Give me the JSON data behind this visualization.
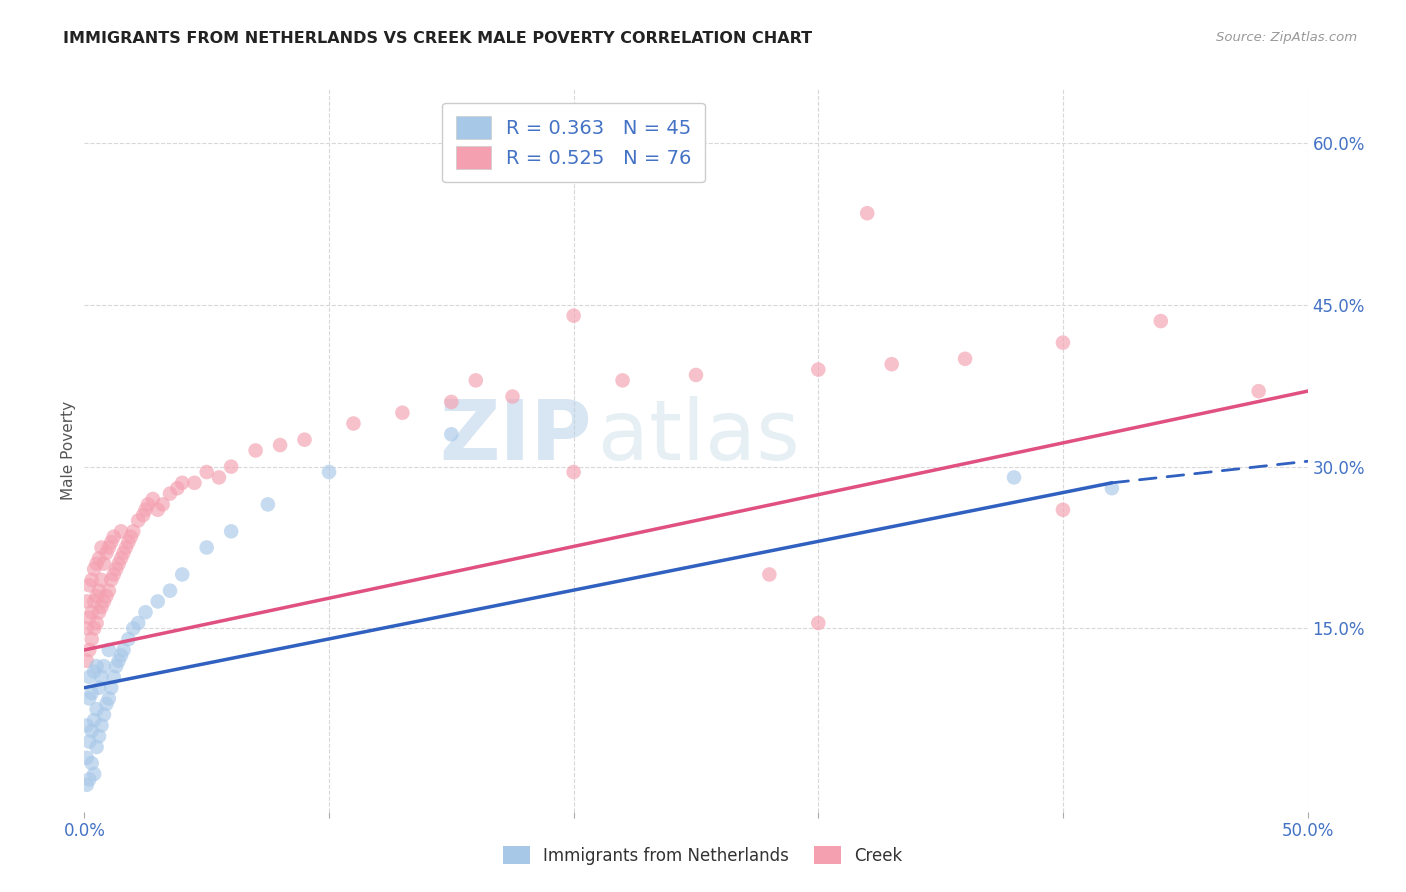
{
  "title": "IMMIGRANTS FROM NETHERLANDS VS CREEK MALE POVERTY CORRELATION CHART",
  "source": "Source: ZipAtlas.com",
  "ylabel": "Male Poverty",
  "xlim": [
    0.0,
    0.5
  ],
  "ylim": [
    -0.02,
    0.65
  ],
  "yticks_right": [
    0.15,
    0.3,
    0.45,
    0.6
  ],
  "ytick_labels_right": [
    "15.0%",
    "30.0%",
    "45.0%",
    "60.0%"
  ],
  "legend_r1": "R = 0.363",
  "legend_n1": "N = 45",
  "legend_r2": "R = 0.525",
  "legend_n2": "N = 76",
  "color_blue": "#a8c8e8",
  "color_pink": "#f4a0b0",
  "color_blue_line": "#3060c0",
  "color_pink_line": "#e05080",
  "background_color": "#ffffff",
  "grid_color": "#d8d8d8",
  "watermark_zip": "ZIP",
  "watermark_atlas": "atlas",
  "blue_x": [
    0.001,
    0.001,
    0.001,
    0.002,
    0.002,
    0.002,
    0.002,
    0.003,
    0.003,
    0.003,
    0.004,
    0.004,
    0.004,
    0.005,
    0.005,
    0.005,
    0.006,
    0.006,
    0.007,
    0.007,
    0.008,
    0.008,
    0.009,
    0.01,
    0.01,
    0.011,
    0.012,
    0.013,
    0.014,
    0.015,
    0.016,
    0.018,
    0.02,
    0.022,
    0.025,
    0.03,
    0.035,
    0.04,
    0.05,
    0.06,
    0.075,
    0.1,
    0.15,
    0.38,
    0.42
  ],
  "blue_y": [
    0.005,
    0.03,
    0.06,
    0.01,
    0.045,
    0.085,
    0.105,
    0.025,
    0.055,
    0.09,
    0.015,
    0.065,
    0.11,
    0.04,
    0.075,
    0.115,
    0.05,
    0.095,
    0.06,
    0.105,
    0.07,
    0.115,
    0.08,
    0.085,
    0.13,
    0.095,
    0.105,
    0.115,
    0.12,
    0.125,
    0.13,
    0.14,
    0.15,
    0.155,
    0.165,
    0.175,
    0.185,
    0.2,
    0.225,
    0.24,
    0.265,
    0.295,
    0.33,
    0.29,
    0.28
  ],
  "pink_x": [
    0.001,
    0.001,
    0.001,
    0.002,
    0.002,
    0.002,
    0.003,
    0.003,
    0.003,
    0.004,
    0.004,
    0.004,
    0.005,
    0.005,
    0.005,
    0.006,
    0.006,
    0.006,
    0.007,
    0.007,
    0.007,
    0.008,
    0.008,
    0.009,
    0.009,
    0.01,
    0.01,
    0.011,
    0.011,
    0.012,
    0.012,
    0.013,
    0.014,
    0.015,
    0.015,
    0.016,
    0.017,
    0.018,
    0.019,
    0.02,
    0.022,
    0.024,
    0.025,
    0.026,
    0.028,
    0.03,
    0.032,
    0.035,
    0.038,
    0.04,
    0.045,
    0.05,
    0.055,
    0.06,
    0.07,
    0.08,
    0.09,
    0.11,
    0.13,
    0.15,
    0.175,
    0.2,
    0.22,
    0.25,
    0.28,
    0.3,
    0.33,
    0.36,
    0.4,
    0.44,
    0.2,
    0.3,
    0.4,
    0.16,
    0.48,
    0.32
  ],
  "pink_y": [
    0.12,
    0.15,
    0.175,
    0.13,
    0.16,
    0.19,
    0.14,
    0.165,
    0.195,
    0.15,
    0.175,
    0.205,
    0.155,
    0.18,
    0.21,
    0.165,
    0.185,
    0.215,
    0.17,
    0.195,
    0.225,
    0.175,
    0.21,
    0.18,
    0.22,
    0.185,
    0.225,
    0.195,
    0.23,
    0.2,
    0.235,
    0.205,
    0.21,
    0.215,
    0.24,
    0.22,
    0.225,
    0.23,
    0.235,
    0.24,
    0.25,
    0.255,
    0.26,
    0.265,
    0.27,
    0.26,
    0.265,
    0.275,
    0.28,
    0.285,
    0.285,
    0.295,
    0.29,
    0.3,
    0.315,
    0.32,
    0.325,
    0.34,
    0.35,
    0.36,
    0.365,
    0.295,
    0.38,
    0.385,
    0.2,
    0.39,
    0.395,
    0.4,
    0.415,
    0.435,
    0.44,
    0.155,
    0.26,
    0.38,
    0.37,
    0.535
  ],
  "blue_line_x0": 0.0,
  "blue_line_y0": 0.095,
  "blue_line_x1": 0.42,
  "blue_line_y1": 0.285,
  "blue_line_xd": 0.5,
  "blue_line_yd": 0.305,
  "pink_line_x0": 0.0,
  "pink_line_y0": 0.13,
  "pink_line_x1": 0.5,
  "pink_line_y1": 0.37
}
